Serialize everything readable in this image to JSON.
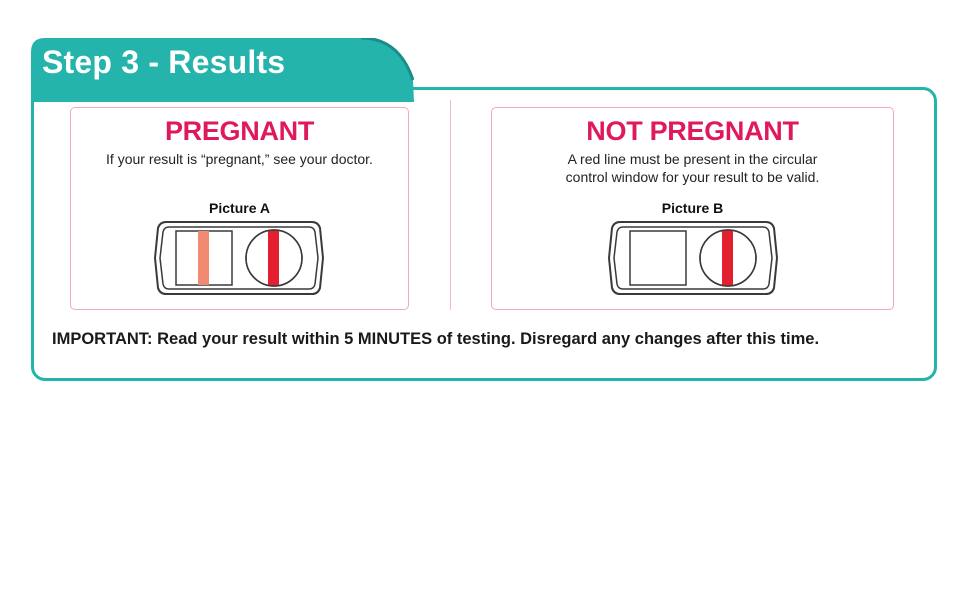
{
  "header": {
    "title": "Step 3 - Results"
  },
  "results": [
    {
      "heading": "PREGNANT",
      "description": "If your result is “pregnant,” see your doctor.",
      "picture_label": "Picture A",
      "result_window_line": true,
      "control_window_line": true
    },
    {
      "heading": "NOT PREGNANT",
      "description": "A red line must be present in the circular control window for your result to be valid.",
      "picture_label": "Picture B",
      "result_window_line": false,
      "control_window_line": true
    }
  ],
  "footer": {
    "important": "IMPORTANT: Read your result within 5 MINUTES of testing. Disregard any changes after this time."
  },
  "colors": {
    "teal": "#25b4ac",
    "teal_dark": "#1a8f88",
    "heading_pink": "#e0195e",
    "control_red": "#e2202f",
    "test_line_salmon": "#f08a72",
    "card_border": "#f0a9c3"
  }
}
